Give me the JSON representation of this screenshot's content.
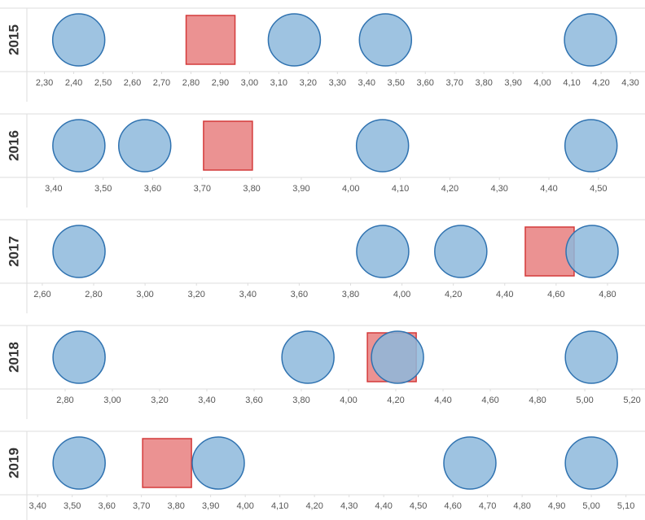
{
  "chart_data": [
    {
      "type": "strip",
      "label": "2015",
      "xlim": [
        2.24,
        4.35
      ],
      "series": [
        {
          "marker": "circle",
          "color": "#8db8dc",
          "values": [
            2.417,
            3.153,
            3.464,
            4.164
          ]
        },
        {
          "marker": "square",
          "color": "#e98686",
          "values": [
            2.867
          ]
        }
      ],
      "xticks": [
        {
          "value": 2.3,
          "label": "2,30"
        },
        {
          "value": 2.4,
          "label": "2,40"
        },
        {
          "value": 2.5,
          "label": "2,50"
        },
        {
          "value": 2.6,
          "label": "2,60"
        },
        {
          "value": 2.7,
          "label": "2,70"
        },
        {
          "value": 2.8,
          "label": "2,80"
        },
        {
          "value": 2.9,
          "label": "2,90"
        },
        {
          "value": 3.0,
          "label": "3,00"
        },
        {
          "value": 3.1,
          "label": "3,10"
        },
        {
          "value": 3.2,
          "label": "3,20"
        },
        {
          "value": 3.3,
          "label": "3,30"
        },
        {
          "value": 3.4,
          "label": "3,40"
        },
        {
          "value": 3.5,
          "label": "3,50"
        },
        {
          "value": 3.6,
          "label": "3,60"
        },
        {
          "value": 3.7,
          "label": "3,70"
        },
        {
          "value": 3.8,
          "label": "3,80"
        },
        {
          "value": 3.9,
          "label": "3,90"
        },
        {
          "value": 4.0,
          "label": "4,00"
        },
        {
          "value": 4.1,
          "label": "4,10"
        },
        {
          "value": 4.2,
          "label": "4,20"
        },
        {
          "value": 4.3,
          "label": "4,30"
        }
      ]
    },
    {
      "type": "strip",
      "label": "2016",
      "xlim": [
        3.346,
        4.594
      ],
      "series": [
        {
          "marker": "circle",
          "color": "#8db8dc",
          "values": [
            3.451,
            3.584,
            4.064,
            4.485
          ]
        },
        {
          "marker": "square",
          "color": "#e98686",
          "values": [
            3.752
          ]
        }
      ],
      "xticks": [
        {
          "value": 3.4,
          "label": "3,40"
        },
        {
          "value": 3.5,
          "label": "3,50"
        },
        {
          "value": 3.6,
          "label": "3,60"
        },
        {
          "value": 3.7,
          "label": "3,70"
        },
        {
          "value": 3.8,
          "label": "3,80"
        },
        {
          "value": 3.9,
          "label": "3,90"
        },
        {
          "value": 4.0,
          "label": "4,00"
        },
        {
          "value": 4.1,
          "label": "4,10"
        },
        {
          "value": 4.2,
          "label": "4,20"
        },
        {
          "value": 4.3,
          "label": "4,30"
        },
        {
          "value": 4.4,
          "label": "4,40"
        },
        {
          "value": 4.5,
          "label": "4,50"
        }
      ]
    },
    {
      "type": "strip",
      "label": "2017",
      "xlim": [
        2.54,
        4.946
      ],
      "series": [
        {
          "marker": "circle",
          "color": "#8db8dc",
          "values": [
            2.743,
            3.925,
            4.229,
            4.74
          ]
        },
        {
          "marker": "square",
          "color": "#e98686",
          "values": [
            4.575
          ]
        }
      ],
      "xticks": [
        {
          "value": 2.6,
          "label": "2,60"
        },
        {
          "value": 2.8,
          "label": "2,80"
        },
        {
          "value": 3.0,
          "label": "3,00"
        },
        {
          "value": 3.2,
          "label": "3,20"
        },
        {
          "value": 3.4,
          "label": "3,40"
        },
        {
          "value": 3.6,
          "label": "3,60"
        },
        {
          "value": 3.8,
          "label": "3,80"
        },
        {
          "value": 4.0,
          "label": "4,00"
        },
        {
          "value": 4.2,
          "label": "4,20"
        },
        {
          "value": 4.4,
          "label": "4,40"
        },
        {
          "value": 4.6,
          "label": "4,60"
        },
        {
          "value": 4.8,
          "label": "4,80"
        }
      ]
    },
    {
      "type": "strip",
      "label": "2018",
      "xlim": [
        2.638,
        5.255
      ],
      "series": [
        {
          "marker": "circle",
          "color": "#8db8dc",
          "values": [
            2.859,
            3.828,
            4.207,
            5.028
          ]
        },
        {
          "marker": "square",
          "color": "#e98686",
          "values": [
            4.183
          ]
        }
      ],
      "xticks": [
        {
          "value": 2.8,
          "label": "2,80"
        },
        {
          "value": 3.0,
          "label": "3,00"
        },
        {
          "value": 3.2,
          "label": "3,20"
        },
        {
          "value": 3.4,
          "label": "3,40"
        },
        {
          "value": 3.6,
          "label": "3,60"
        },
        {
          "value": 3.8,
          "label": "3,80"
        },
        {
          "value": 4.0,
          "label": "4,00"
        },
        {
          "value": 4.2,
          "label": "4,20"
        },
        {
          "value": 4.4,
          "label": "4,40"
        },
        {
          "value": 4.6,
          "label": "4,60"
        },
        {
          "value": 4.8,
          "label": "4,80"
        },
        {
          "value": 5.0,
          "label": "5,00"
        },
        {
          "value": 5.2,
          "label": "5,20"
        }
      ]
    },
    {
      "type": "strip",
      "label": "2019",
      "xlim": [
        3.369,
        5.155
      ],
      "series": [
        {
          "marker": "circle",
          "color": "#8db8dc",
          "values": [
            3.52,
            3.922,
            4.649,
            5.0
          ]
        },
        {
          "marker": "square",
          "color": "#e98686",
          "values": [
            3.774
          ]
        }
      ],
      "xticks": [
        {
          "value": 3.4,
          "label": "3,40"
        },
        {
          "value": 3.5,
          "label": "3,50"
        },
        {
          "value": 3.6,
          "label": "3,60"
        },
        {
          "value": 3.7,
          "label": "3,70"
        },
        {
          "value": 3.8,
          "label": "3,80"
        },
        {
          "value": 3.9,
          "label": "3,90"
        },
        {
          "value": 4.0,
          "label": "4,00"
        },
        {
          "value": 4.1,
          "label": "4,10"
        },
        {
          "value": 4.2,
          "label": "4,20"
        },
        {
          "value": 4.3,
          "label": "4,30"
        },
        {
          "value": 4.4,
          "label": "4,40"
        },
        {
          "value": 4.5,
          "label": "4,50"
        },
        {
          "value": 4.6,
          "label": "4,60"
        },
        {
          "value": 4.7,
          "label": "4,70"
        },
        {
          "value": 4.8,
          "label": "4,80"
        },
        {
          "value": 4.9,
          "label": "4,90"
        },
        {
          "value": 5.0,
          "label": "5,00"
        },
        {
          "value": 5.1,
          "label": "5,10"
        }
      ]
    }
  ]
}
